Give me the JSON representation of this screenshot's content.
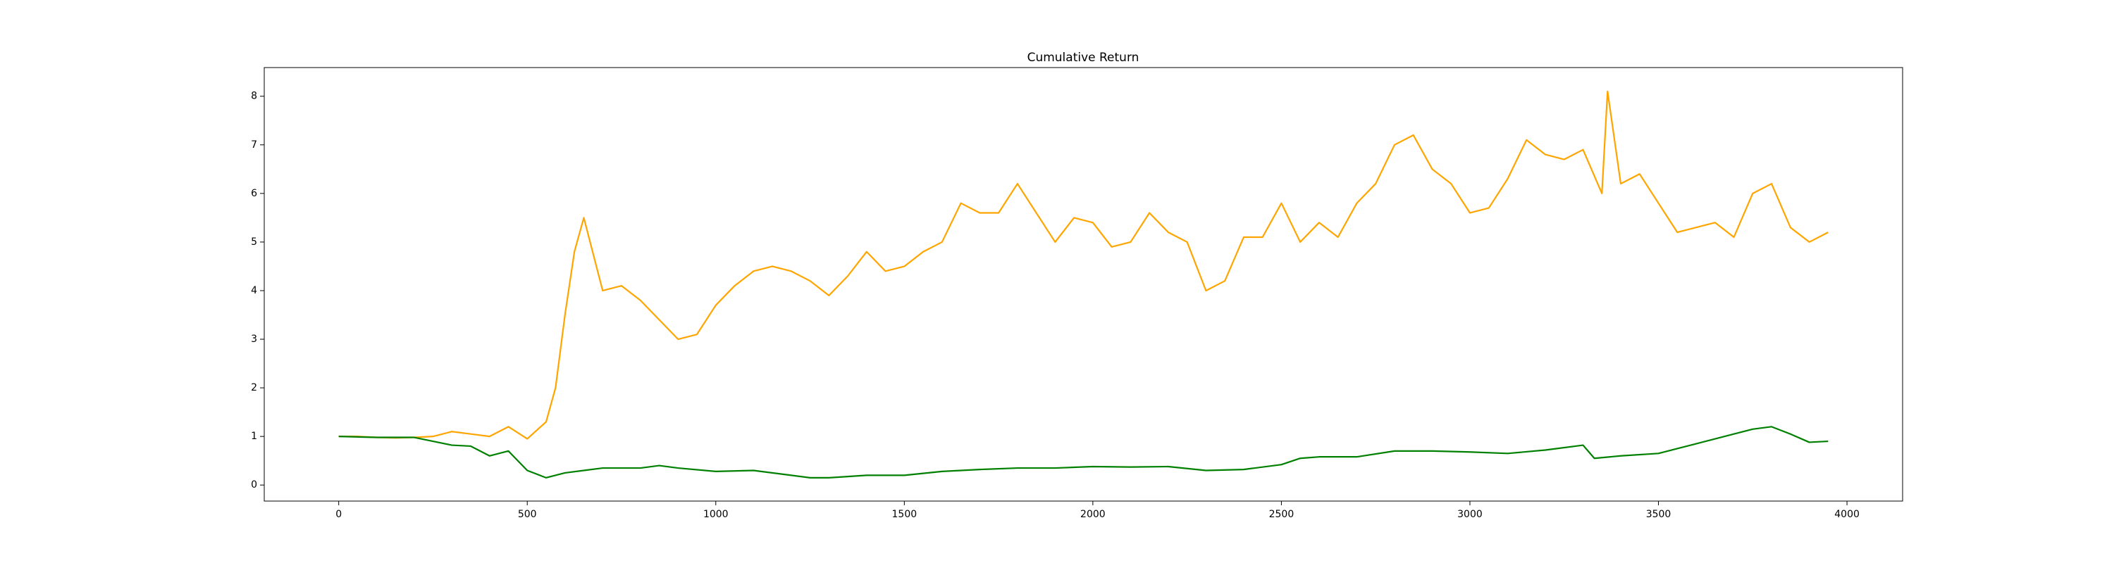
{
  "chart_data": {
    "type": "line",
    "title": "Cumulative Return",
    "xlim": [
      -197.5,
      4147.5
    ],
    "xticks": [
      0,
      500,
      1000,
      1500,
      2000,
      2500,
      3000,
      3500,
      4000
    ],
    "ylim": [
      -0.33,
      8.59
    ],
    "yticks": [
      0,
      1,
      2,
      3,
      4,
      5,
      6,
      7,
      8
    ],
    "grid": false,
    "series": [
      {
        "color": "orange",
        "x": [
          0,
          50,
          100,
          150,
          200,
          250,
          300,
          350,
          400,
          450,
          500,
          550,
          575,
          600,
          625,
          650,
          700,
          750,
          800,
          850,
          900,
          950,
          1000,
          1050,
          1100,
          1150,
          1200,
          1250,
          1300,
          1350,
          1400,
          1450,
          1500,
          1550,
          1600,
          1650,
          1700,
          1750,
          1800,
          1850,
          1900,
          1950,
          2000,
          2050,
          2100,
          2150,
          2200,
          2250,
          2300,
          2350,
          2400,
          2450,
          2500,
          2550,
          2600,
          2650,
          2700,
          2750,
          2800,
          2850,
          2900,
          2950,
          3000,
          3050,
          3100,
          3150,
          3200,
          3250,
          3300,
          3350,
          3365,
          3400,
          3450,
          3500,
          3550,
          3600,
          3650,
          3700,
          3750,
          3800,
          3850,
          3900,
          3950
        ],
        "values": [
          1.0,
          1.0,
          0.98,
          0.97,
          0.98,
          1.0,
          1.1,
          1.05,
          1.0,
          1.2,
          0.95,
          1.3,
          2.0,
          3.5,
          4.8,
          5.5,
          4.0,
          4.1,
          3.8,
          3.4,
          3.0,
          3.1,
          3.7,
          4.1,
          4.4,
          4.5,
          4.4,
          4.2,
          3.9,
          4.3,
          4.8,
          4.4,
          4.5,
          4.8,
          5.0,
          5.8,
          5.6,
          5.6,
          6.2,
          5.6,
          5.0,
          5.5,
          5.4,
          4.9,
          5.0,
          5.6,
          5.2,
          5.0,
          4.0,
          4.2,
          5.1,
          5.1,
          5.8,
          5.0,
          5.4,
          5.1,
          5.8,
          6.2,
          7.0,
          7.2,
          6.5,
          6.2,
          5.6,
          5.7,
          6.3,
          7.1,
          6.8,
          6.7,
          6.9,
          6.0,
          8.1,
          6.2,
          6.4,
          5.8,
          5.2,
          5.3,
          5.4,
          5.1,
          6.0,
          6.2,
          5.3,
          5.0,
          5.2
        ]
      },
      {
        "color": "green",
        "x": [
          0,
          100,
          200,
          250,
          300,
          350,
          400,
          450,
          500,
          550,
          600,
          650,
          700,
          800,
          850,
          900,
          1000,
          1100,
          1200,
          1250,
          1300,
          1400,
          1500,
          1600,
          1700,
          1800,
          1900,
          2000,
          2100,
          2200,
          2300,
          2400,
          2500,
          2550,
          2600,
          2700,
          2800,
          2900,
          3000,
          3100,
          3200,
          3300,
          3330,
          3400,
          3500,
          3600,
          3700,
          3750,
          3800,
          3850,
          3900,
          3950
        ],
        "values": [
          1.0,
          0.98,
          0.98,
          0.9,
          0.82,
          0.8,
          0.6,
          0.7,
          0.3,
          0.15,
          0.25,
          0.3,
          0.35,
          0.35,
          0.4,
          0.35,
          0.28,
          0.3,
          0.2,
          0.15,
          0.15,
          0.2,
          0.2,
          0.28,
          0.32,
          0.35,
          0.35,
          0.38,
          0.37,
          0.38,
          0.3,
          0.32,
          0.42,
          0.55,
          0.58,
          0.58,
          0.7,
          0.7,
          0.68,
          0.65,
          0.72,
          0.82,
          0.55,
          0.6,
          0.65,
          0.85,
          1.05,
          1.15,
          1.2,
          1.05,
          0.88,
          0.9
        ]
      }
    ]
  }
}
